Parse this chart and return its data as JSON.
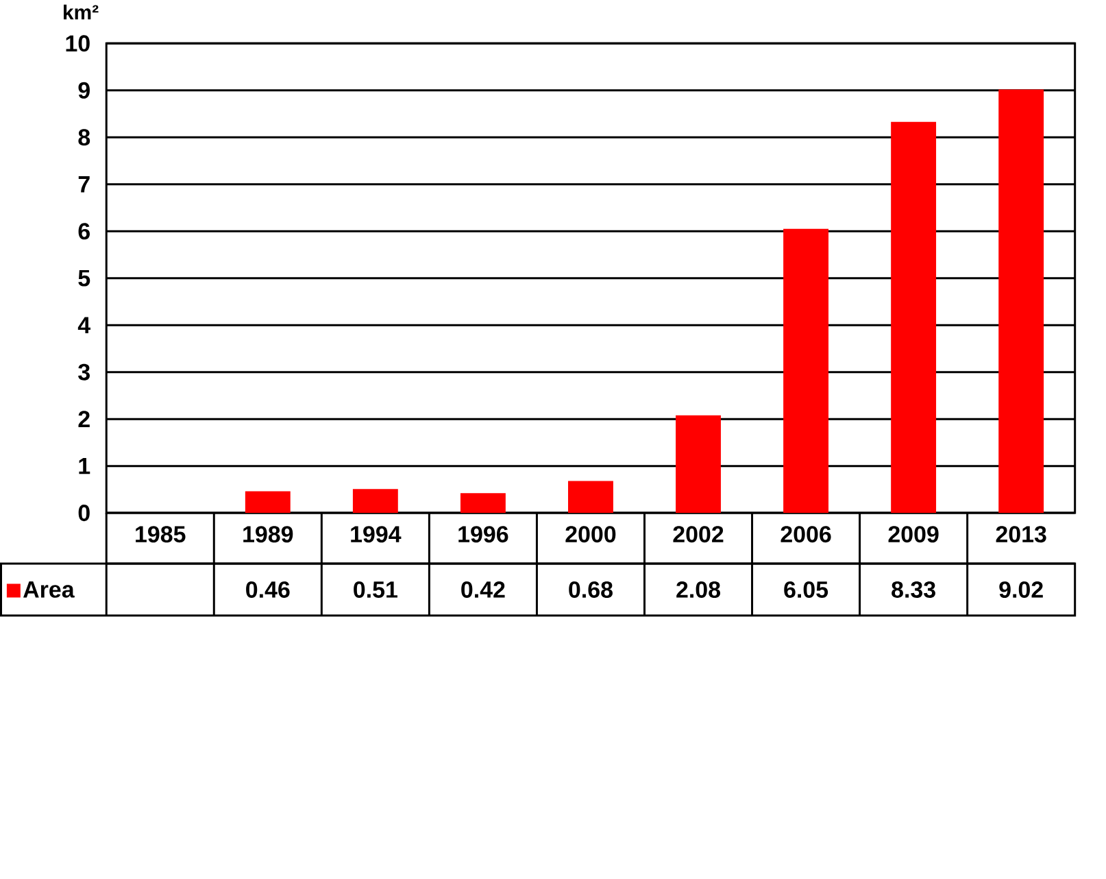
{
  "chart_data": {
    "type": "bar",
    "ylabel": "km²",
    "categories": [
      "1985",
      "1989",
      "1994",
      "1996",
      "2000",
      "2002",
      "2006",
      "2009",
      "2013"
    ],
    "series": [
      {
        "name": "Area",
        "color": "#ff0000",
        "values": [
          null,
          0.46,
          0.51,
          0.42,
          0.68,
          2.08,
          6.05,
          8.33,
          9.02
        ]
      }
    ],
    "ylim": [
      0,
      10
    ],
    "yticks": [
      0,
      1,
      2,
      3,
      4,
      5,
      6,
      7,
      8,
      9,
      10
    ],
    "grid": "y",
    "legend": "bottom left",
    "data_labels": true
  }
}
